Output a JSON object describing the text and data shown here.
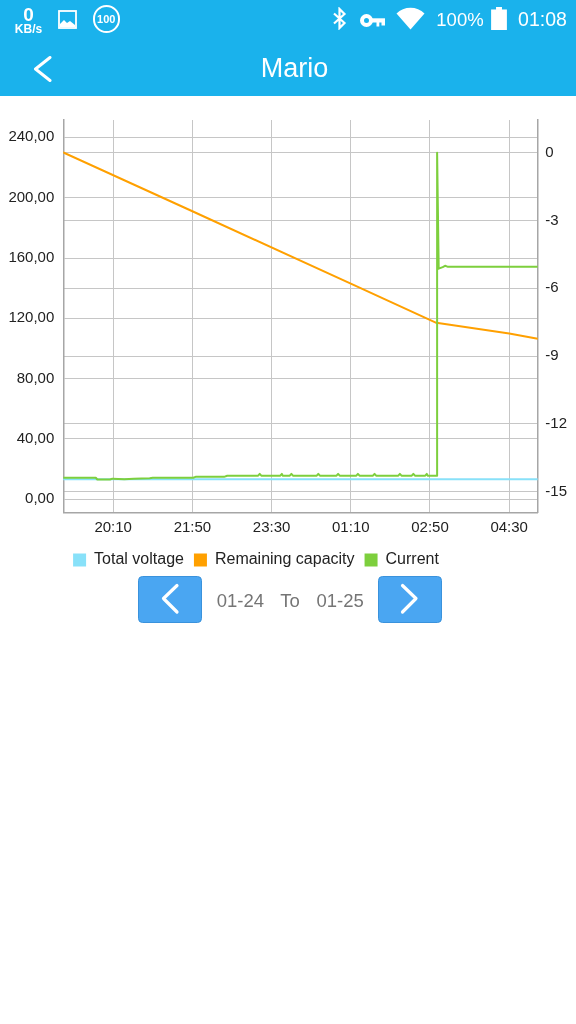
{
  "chart_data": {
    "type": "line",
    "title": "Mario",
    "subtitle": "01-24 To 01-25",
    "annotations": [
      "0",
      "KB/s",
      "100",
      "100%",
      "01:08"
    ],
    "xlim": [
      "--01-24T19:07",
      "--01-25T05:06"
    ],
    "xticks": [
      {
        "value": "--01-24T20:10",
        "label": "20:10"
      },
      {
        "value": "--01-24T21:50",
        "label": "21:50"
      },
      {
        "value": "--01-24T23:30",
        "label": "23:30"
      },
      {
        "value": "--01-25T01:10",
        "label": "01:10"
      },
      {
        "value": "--01-25T02:50",
        "label": "02:50"
      },
      {
        "value": "--01-25T04:30",
        "label": "04:30"
      }
    ],
    "ylim": [
      -8.6,
      251.5
    ],
    "yticks": [
      {
        "value": 0,
        "label": "0,00"
      },
      {
        "value": 40,
        "label": "40,00"
      },
      {
        "value": 80,
        "label": "80,00"
      },
      {
        "value": 120,
        "label": "120,00"
      },
      {
        "value": 160,
        "label": "160,00"
      },
      {
        "value": 200,
        "label": "200,00"
      },
      {
        "value": 240,
        "label": "240,00"
      }
    ],
    "y2lim": [
      -15.91,
      1.45
    ],
    "y2ticks": [
      -15,
      -12,
      -9,
      -6,
      -3,
      0
    ],
    "grid": true,
    "legend": "bottom",
    "series": [
      {
        "name": "Total voltage",
        "color": "#88e1f9",
        "x": [
          "--01-24T19:07",
          "--01-25T00:06",
          "--01-25T05:06"
        ],
        "values": [
          13.3,
          13.3,
          13.3
        ]
      },
      {
        "name": "Remaining capacity",
        "color": "#ffa000",
        "x": [
          "--01-24T19:07",
          "--01-24T21:50",
          "--01-25T01:10",
          "--01-25T02:58",
          "--01-25T04:30",
          "--01-25T05:06"
        ],
        "values": [
          230,
          191,
          143,
          117,
          110,
          106.5
        ]
      },
      {
        "name": "Current",
        "color": "#7dcf3d",
        "axis": "y2",
        "x": [
          "--01-24T19:07",
          "--01-24T19:48",
          "--01-24T19:50",
          "--01-24T20:06",
          "--01-24T20:09",
          "--01-24T20:24",
          "--01-24T20:36",
          "--01-24T20:56",
          "--01-24T21:00",
          "--01-24T21:51",
          "--01-24T21:54",
          "--01-24T22:30",
          "--01-24T22:34",
          "--01-24T23:13",
          "--01-24T23:15",
          "--01-24T23:17",
          "--01-24T23:41",
          "--01-24T23:43",
          "--01-24T23:44",
          "--01-24T23:53",
          "--01-24T23:55",
          "--01-24T23:57",
          "--01-25T00:27",
          "--01-25T00:29",
          "--01-25T00:31",
          "--01-25T00:52",
          "--01-25T00:54",
          "--01-25T00:56",
          "--01-25T01:17",
          "--01-25T01:19",
          "--01-25T01:21",
          "--01-25T01:38",
          "--01-25T01:40",
          "--01-25T01:42",
          "--01-25T02:10",
          "--01-25T02:12",
          "--01-25T02:14",
          "--01-25T02:27",
          "--01-25T02:29",
          "--01-25T02:31",
          "--01-25T02:44",
          "--01-25T02:46",
          "--01-25T02:47",
          "--01-25T02:59",
          "--01-25T02:59",
          "--01-25T03:01",
          "--01-25T03:06",
          "--01-25T03:09",
          "--01-25T03:12",
          "--01-25T05:06"
        ],
        "values": [
          -14.38,
          -14.38,
          -14.46,
          -14.46,
          -14.42,
          -14.45,
          -14.42,
          -14.4,
          -14.38,
          -14.38,
          -14.34,
          -14.34,
          -14.29,
          -14.29,
          -14.21,
          -14.29,
          -14.29,
          -14.21,
          -14.29,
          -14.29,
          -14.21,
          -14.29,
          -14.29,
          -14.21,
          -14.29,
          -14.29,
          -14.21,
          -14.29,
          -14.29,
          -14.21,
          -14.29,
          -14.29,
          -14.21,
          -14.29,
          -14.29,
          -14.21,
          -14.29,
          -14.29,
          -14.21,
          -14.29,
          -14.29,
          -14.21,
          -14.29,
          -14.29,
          0,
          -5.13,
          -5.06,
          -5.0,
          -5.04,
          -5.04
        ]
      }
    ]
  }
}
